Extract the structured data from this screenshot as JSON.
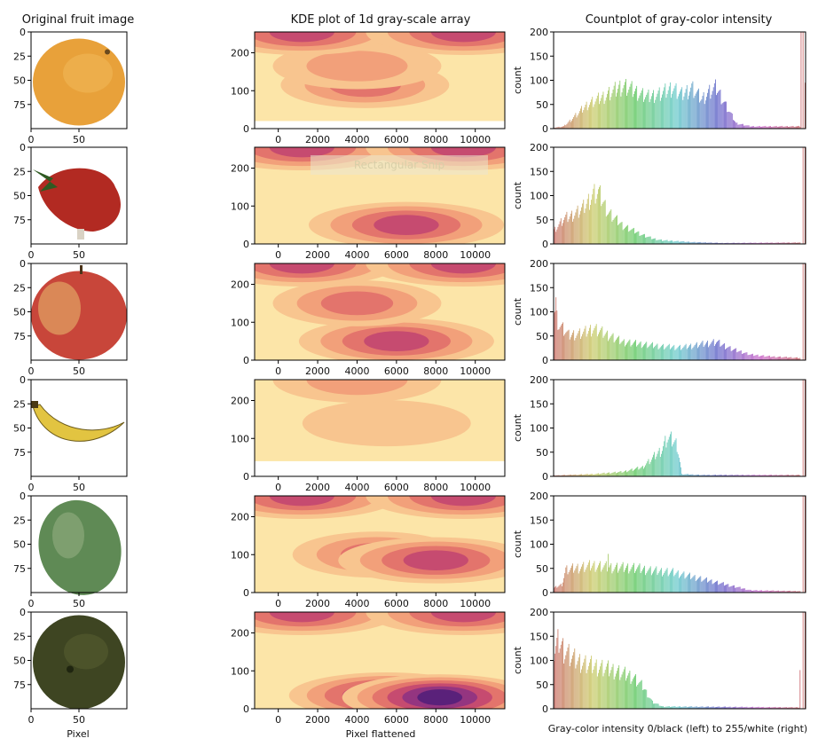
{
  "titles": {
    "col1": "Original fruit image",
    "col2": "KDE plot of 1d gray-scale array",
    "col3": "Countplot of gray-color intensity"
  },
  "xlabels": {
    "col1": "Pixel",
    "col2": "Pixel flattened",
    "col3": "Gray-color intensity 0/black (left) to 255/white (right)"
  },
  "overlay_text": "Rectangular Snip",
  "chart_data": [
    {
      "type": "image-grid",
      "title": "Original fruit image",
      "xlabel": "Pixel",
      "xticks": [
        0,
        50
      ],
      "yticks": [
        0,
        25,
        50,
        75
      ],
      "xlim": [
        0,
        100
      ],
      "ylim": [
        100,
        0
      ],
      "panels": [
        {
          "fruit": "orange",
          "color": "#e8a13a"
        },
        {
          "fruit": "strawberry",
          "color": "#b22a22"
        },
        {
          "fruit": "apple",
          "color": "#c8463a"
        },
        {
          "fruit": "banana",
          "color": "#e2c441"
        },
        {
          "fruit": "mango",
          "color": "#5f8a55"
        },
        {
          "fruit": "avocado",
          "color": "#3e4522"
        }
      ]
    },
    {
      "type": "heatmap",
      "subtype": "kde",
      "title": "KDE plot of 1d gray-scale array",
      "xlabel": "Pixel flattened",
      "xticks": [
        0,
        2000,
        4000,
        6000,
        8000,
        10000
      ],
      "yticks": [
        0,
        100,
        200
      ],
      "xlim": [
        -1200,
        11500
      ],
      "ylim": [
        0,
        255
      ],
      "panels": [
        {
          "fruit": "orange",
          "white_below": 20,
          "blobs": [
            {
              "x": 4400,
              "y": 115,
              "level": 3
            },
            {
              "x": 4000,
              "y": 165,
              "level": 2
            },
            {
              "x": 1200,
              "y": 255,
              "level": 4
            },
            {
              "x": 9400,
              "y": 255,
              "level": 4
            }
          ]
        },
        {
          "fruit": "strawberry",
          "white_below": 0,
          "blobs": [
            {
              "x": 6500,
              "y": 50,
              "level": 4
            },
            {
              "x": 1200,
              "y": 255,
              "level": 4
            },
            {
              "x": 9400,
              "y": 255,
              "level": 4
            }
          ]
        },
        {
          "fruit": "apple",
          "white_below": 0,
          "blobs": [
            {
              "x": 6000,
              "y": 50,
              "level": 4
            },
            {
              "x": 4000,
              "y": 150,
              "level": 3
            },
            {
              "x": 1200,
              "y": 255,
              "level": 4
            },
            {
              "x": 9400,
              "y": 255,
              "level": 4
            }
          ]
        },
        {
          "fruit": "banana",
          "white_below": 40,
          "blobs": [
            {
              "x": 5500,
              "y": 140,
              "level": 1
            },
            {
              "x": 4000,
              "y": 255,
              "level": 2
            }
          ]
        },
        {
          "fruit": "mango",
          "white_below": 0,
          "blobs": [
            {
              "x": 5000,
              "y": 100,
              "level": 3
            },
            {
              "x": 8000,
              "y": 85,
              "level": 4
            },
            {
              "x": 1200,
              "y": 255,
              "level": 4
            },
            {
              "x": 9400,
              "y": 255,
              "level": 4
            }
          ]
        },
        {
          "fruit": "avocado",
          "white_below": 0,
          "blobs": [
            {
              "x": 5500,
              "y": 35,
              "level": 5
            },
            {
              "x": 8200,
              "y": 30,
              "level": 6
            },
            {
              "x": 1200,
              "y": 255,
              "level": 4
            },
            {
              "x": 9400,
              "y": 255,
              "level": 4
            }
          ]
        }
      ]
    },
    {
      "type": "bar",
      "title": "Countplot of gray-color intensity",
      "ylabel": "count",
      "xlabel": "Gray-color intensity 0/black (left) to 255/white (right)",
      "x_range": [
        0,
        255
      ],
      "ylim": [
        0,
        200
      ],
      "yticks": [
        0,
        50,
        100,
        150,
        200
      ],
      "panels": [
        {
          "fruit": "orange",
          "profile": [
            [
              0,
              2
            ],
            [
              10,
              5
            ],
            [
              20,
              25
            ],
            [
              35,
              55
            ],
            [
              50,
              70
            ],
            [
              60,
              82
            ],
            [
              70,
              95
            ],
            [
              80,
              85
            ],
            [
              95,
              70
            ],
            [
              110,
              78
            ],
            [
              120,
              90
            ],
            [
              130,
              75
            ],
            [
              140,
              90
            ],
            [
              150,
              65
            ],
            [
              160,
              85
            ],
            [
              165,
              90
            ],
            [
              175,
              50
            ],
            [
              185,
              12
            ],
            [
              200,
              5
            ],
            [
              250,
              5
            ]
          ],
          "spikes": [
            [
              251,
              200
            ],
            [
              253,
              200
            ],
            [
              255,
              95
            ]
          ]
        },
        {
          "fruit": "strawberry",
          "profile": [
            [
              0,
              30
            ],
            [
              10,
              55
            ],
            [
              20,
              65
            ],
            [
              30,
              80
            ],
            [
              40,
              110
            ],
            [
              45,
              115
            ],
            [
              55,
              70
            ],
            [
              70,
              40
            ],
            [
              90,
              20
            ],
            [
              100,
              12
            ],
            [
              110,
              8
            ],
            [
              140,
              4
            ],
            [
              170,
              2
            ],
            [
              250,
              3
            ]
          ],
          "spikes": [
            [
              253,
              200
            ],
            [
              255,
              200
            ]
          ]
        },
        {
          "fruit": "apple",
          "profile": [
            [
              0,
              115
            ],
            [
              5,
              80
            ],
            [
              15,
              55
            ],
            [
              30,
              60
            ],
            [
              40,
              70
            ],
            [
              50,
              60
            ],
            [
              70,
              40
            ],
            [
              90,
              35
            ],
            [
              110,
              30
            ],
            [
              130,
              28
            ],
            [
              150,
              35
            ],
            [
              165,
              40
            ],
            [
              180,
              25
            ],
            [
              200,
              12
            ],
            [
              220,
              8
            ],
            [
              250,
              5
            ]
          ],
          "spikes": [
            [
              2,
              130
            ],
            [
              253,
              200
            ],
            [
              255,
              200
            ]
          ]
        },
        {
          "fruit": "banana",
          "profile": [
            [
              0,
              2
            ],
            [
              40,
              5
            ],
            [
              70,
              10
            ],
            [
              90,
              20
            ],
            [
              100,
              40
            ],
            [
              110,
              60
            ],
            [
              115,
              85
            ],
            [
              120,
              80
            ],
            [
              125,
              70
            ],
            [
              130,
              5
            ],
            [
              150,
              3
            ],
            [
              250,
              3
            ]
          ],
          "spikes": [
            [
              253,
              200
            ],
            [
              255,
              200
            ]
          ]
        },
        {
          "fruit": "mango",
          "profile": [
            [
              0,
              10
            ],
            [
              8,
              18
            ],
            [
              12,
              50
            ],
            [
              25,
              55
            ],
            [
              40,
              60
            ],
            [
              60,
              55
            ],
            [
              80,
              55
            ],
            [
              100,
              48
            ],
            [
              120,
              45
            ],
            [
              140,
              35
            ],
            [
              160,
              25
            ],
            [
              180,
              15
            ],
            [
              200,
              5
            ],
            [
              250,
              3
            ]
          ],
          "spikes": [
            [
              55,
              80
            ],
            [
              253,
              200
            ],
            [
              255,
              200
            ]
          ]
        },
        {
          "fruit": "avocado",
          "profile": [
            [
              0,
              120
            ],
            [
              5,
              150
            ],
            [
              10,
              130
            ],
            [
              20,
              110
            ],
            [
              30,
              100
            ],
            [
              40,
              95
            ],
            [
              60,
              85
            ],
            [
              80,
              70
            ],
            [
              90,
              50
            ],
            [
              100,
              15
            ],
            [
              110,
              5
            ],
            [
              250,
              3
            ]
          ],
          "spikes": [
            [
              250,
              80
            ],
            [
              253,
              200
            ],
            [
              255,
              200
            ]
          ]
        }
      ]
    }
  ]
}
